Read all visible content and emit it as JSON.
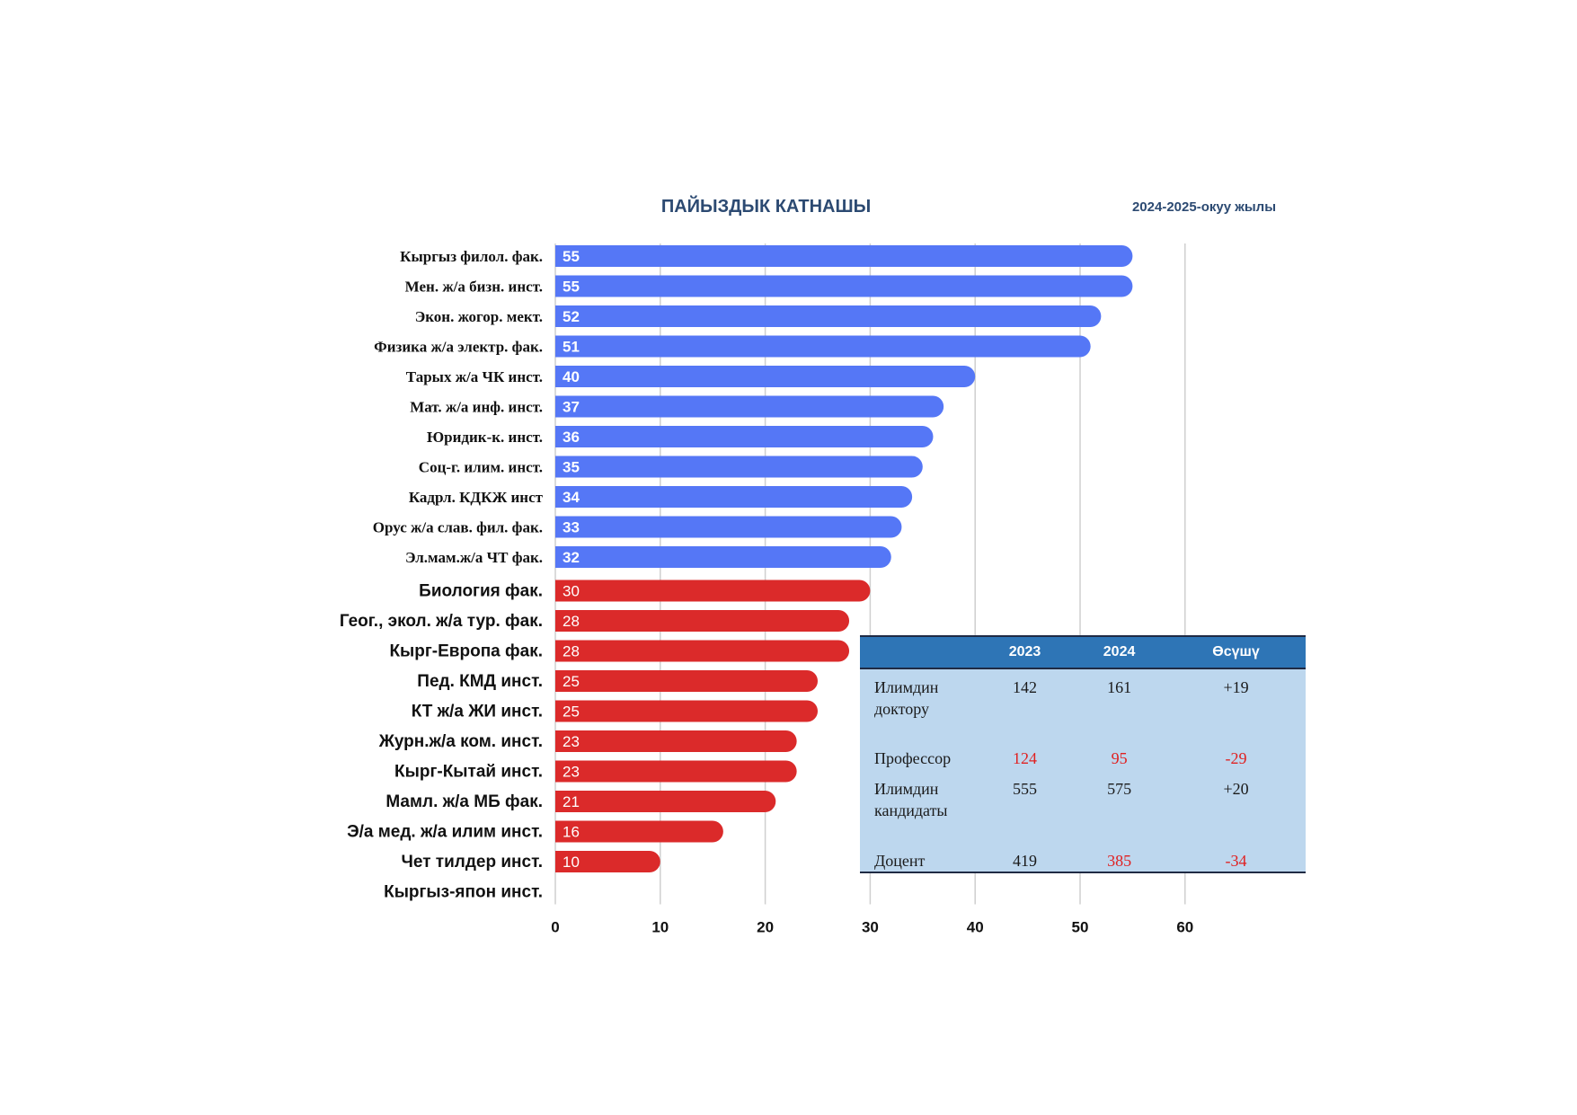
{
  "chart_data": {
    "type": "bar",
    "orientation": "horizontal",
    "title": "ПАЙЫЗДЫК КАТНАШЫ",
    "subtitle": "2024-2025-окуу жылы",
    "xlim": [
      0,
      60
    ],
    "xticks": [
      "0",
      "10",
      "20",
      "30",
      "40",
      "50",
      "60"
    ],
    "grid": true,
    "categories": [
      "Кыргыз филол. фак.",
      "Мен. ж/а бизн. инст.",
      "Экон. жогор. мект.",
      "Физика ж/а электр. фак.",
      "Тарых ж/а ЧК инст.",
      "Мат. ж/а инф. инст.",
      "Юридик-к. инст.",
      "Соц-г. илим. инст.",
      "Кадрл. КДКЖ инст",
      "Орус ж/а слав. фил. фак.",
      "Эл.мам.ж/а ЧТ фак.",
      "Биология фак.",
      "Геог., экол. ж/а тур. фак.",
      "Кырг-Европа фак.",
      "Пед. КМД инст.",
      "КТ ж/а ЖИ инст.",
      "Журн.ж/а ком. инст.",
      "Кырг-Кытай инст.",
      "Мамл. ж/а МБ фак.",
      "Э/а мед. ж/а илим инст.",
      "Чет тилдер инст.",
      "Кыргыз-япон инст."
    ],
    "values": [
      55,
      55,
      52,
      51,
      40,
      37,
      36,
      35,
      34,
      33,
      32,
      30,
      28,
      28,
      25,
      25,
      23,
      23,
      21,
      16,
      10,
      null
    ],
    "colors": {
      "high": "#5577f6",
      "low": "#db2a2a"
    },
    "high_count": 11
  },
  "table": {
    "headers": [
      "",
      "2023",
      "2024",
      "Өсүшү"
    ],
    "rows": [
      {
        "label": "Илимдин доктору",
        "v2023": "142",
        "v2024": "161",
        "growth": "+19",
        "negative": false
      },
      {
        "label": "Профессор",
        "v2023": "124",
        "v2024": "95",
        "growth": "-29",
        "negative": true
      },
      {
        "label": "Илимдин кандидаты",
        "v2023": "555",
        "v2024": "575",
        "growth": "+20",
        "negative": false
      },
      {
        "label": "Доцент",
        "v2023": "419",
        "v2024": "385",
        "growth": "-34",
        "negative": true
      }
    ]
  }
}
